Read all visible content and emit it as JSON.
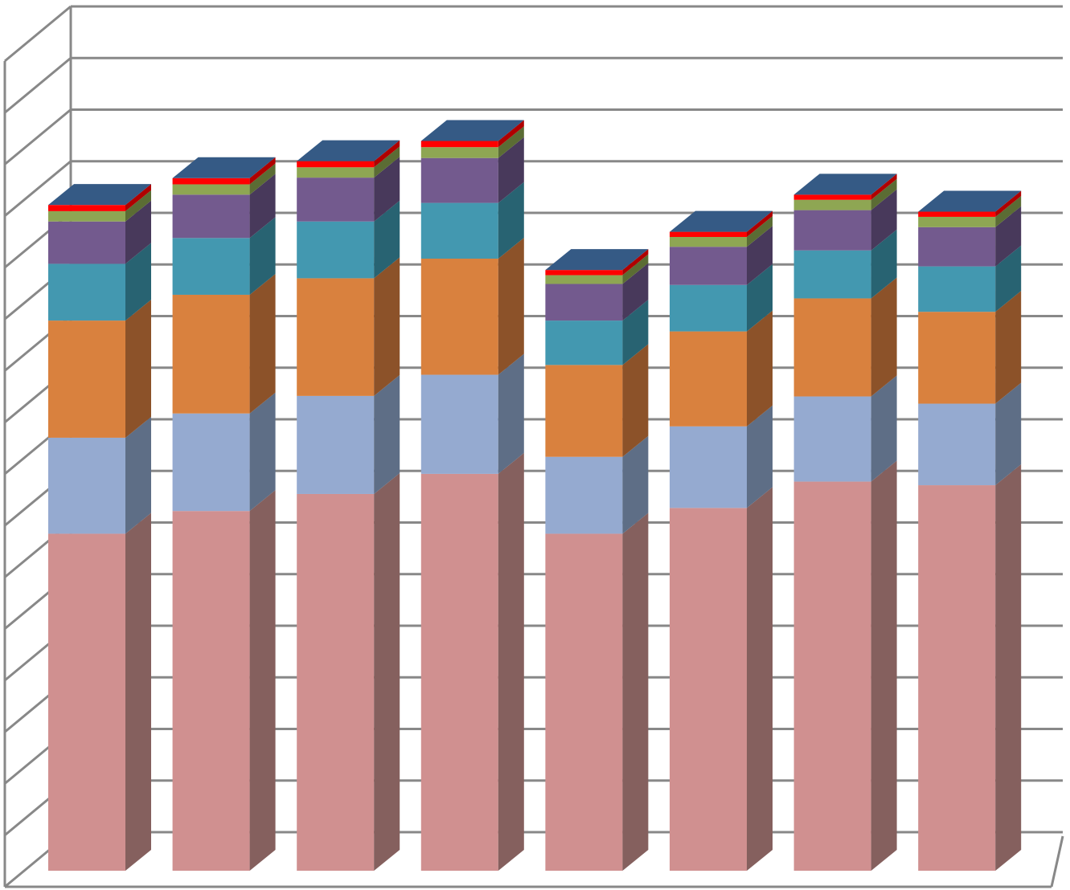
{
  "chart_data": {
    "type": "bar",
    "stacked": true,
    "three_d": true,
    "title": "",
    "xlabel": "",
    "ylabel": "",
    "ylim": [
      0,
      16
    ],
    "grid": true,
    "gridline_step": 1,
    "legend": "none",
    "categories": [
      "",
      "",
      "",
      "",
      "",
      "",
      "",
      ""
    ],
    "series": [
      {
        "color": "#D09090",
        "side_color": "#85605E",
        "values": [
          6.53,
          6.97,
          7.3,
          7.69,
          6.53,
          7.03,
          7.54,
          7.47
        ]
      },
      {
        "color": "#95AAD0",
        "side_color": "#5E6E86",
        "values": [
          1.86,
          1.89,
          1.9,
          1.92,
          1.49,
          1.58,
          1.65,
          1.58
        ]
      },
      {
        "color": "#D9813E",
        "side_color": "#8C5229",
        "values": [
          2.27,
          2.3,
          2.28,
          2.25,
          1.78,
          1.84,
          1.9,
          1.78
        ]
      },
      {
        "color": "#4398B0",
        "side_color": "#286372",
        "values": [
          1.1,
          1.1,
          1.1,
          1.08,
          0.86,
          0.9,
          0.93,
          0.88
        ]
      },
      {
        "color": "#735A8E",
        "side_color": "#48395B",
        "values": [
          0.82,
          0.84,
          0.85,
          0.87,
          0.71,
          0.74,
          0.78,
          0.76
        ]
      },
      {
        "color": "#8EA653",
        "side_color": "#5B6C34",
        "values": [
          0.2,
          0.2,
          0.2,
          0.21,
          0.17,
          0.19,
          0.2,
          0.2
        ]
      },
      {
        "color": "#FF0000",
        "side_color": "#B00000",
        "values": [
          0.12,
          0.12,
          0.12,
          0.12,
          0.1,
          0.1,
          0.1,
          0.1
        ]
      }
    ],
    "top_face_color": "#355A85"
  }
}
